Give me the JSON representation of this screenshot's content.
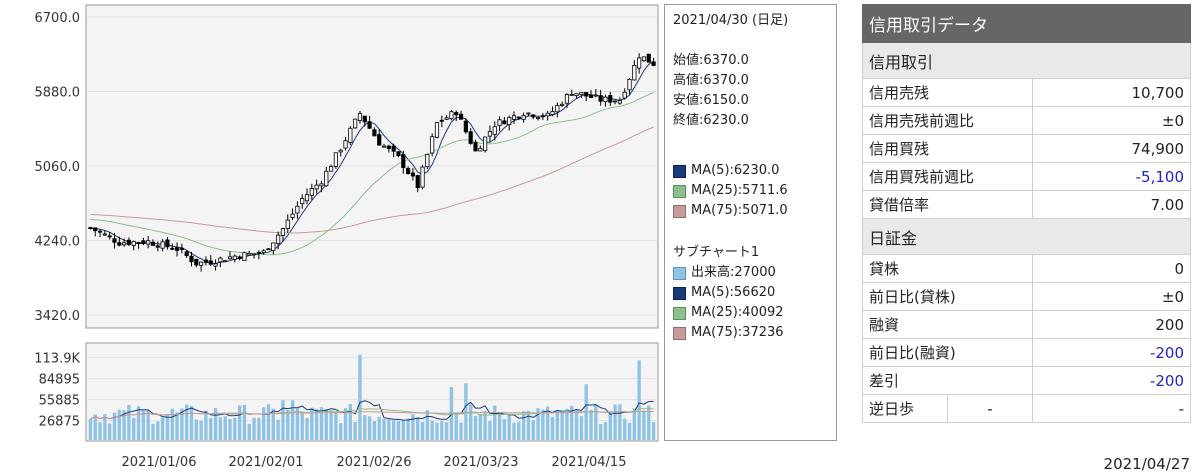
{
  "chart_data": {
    "type": "candlestick",
    "price_axis": {
      "ticks": [
        "6700.0",
        "5880.0",
        "5060.0",
        "4240.0",
        "3420.0"
      ],
      "ylim": [
        3300,
        6800
      ]
    },
    "volume_axis": {
      "ticks": [
        "113.9K",
        "84895",
        "55885",
        "26875"
      ],
      "ylim": [
        0,
        130000
      ]
    },
    "x_ticks": [
      "2021/01/06",
      "2021/02/01",
      "2021/02/26",
      "2021/03/23",
      "2021/04/15"
    ],
    "series": [
      {
        "name": "MA(5)",
        "color": "#1a3a7a"
      },
      {
        "name": "MA(25)",
        "color": "#8cbf8c"
      },
      {
        "name": "MA(75)",
        "color": "#c99a9a"
      }
    ],
    "volume_color": "#8fc3e6"
  },
  "info": {
    "date": "2021/04/30 (日足)",
    "open": "始値:6370.0",
    "high": "高値:6370.0",
    "low": "安値:6150.0",
    "close": "終値:6230.0",
    "ma5": "MA(5):6230.0",
    "ma25": "MA(25):5711.6",
    "ma75": "MA(75):5071.0",
    "sub_title": "サブチャート1",
    "vol": "出来高:27000",
    "vma5": "MA(5):56620",
    "vma25": "MA(25):40092",
    "vma75": "MA(75):37236"
  },
  "credit": {
    "title": "信用取引データ",
    "section1": "信用取引",
    "rows1": [
      {
        "label": "信用売残",
        "value": "10,700"
      },
      {
        "label": "信用売残前週比",
        "value": "±0"
      },
      {
        "label": "信用買残",
        "value": "74,900"
      },
      {
        "label": "信用買残前週比",
        "value": "-5,100"
      },
      {
        "label": "貸借倍率",
        "value": "7.00"
      }
    ],
    "section2": "日証金",
    "rows2": [
      {
        "label": "貸株",
        "value": "0"
      },
      {
        "label": "前日比(貸株)",
        "value": "±0"
      },
      {
        "label": "融資",
        "value": "200"
      },
      {
        "label": "前日比(融資)",
        "value": "-200"
      },
      {
        "label": "差引",
        "value": "-200"
      }
    ],
    "gyakuhibu_label": "逆日歩",
    "gyakuhibu_mid": "-",
    "gyakuhibu_value": "-",
    "date": "2021/04/27"
  }
}
